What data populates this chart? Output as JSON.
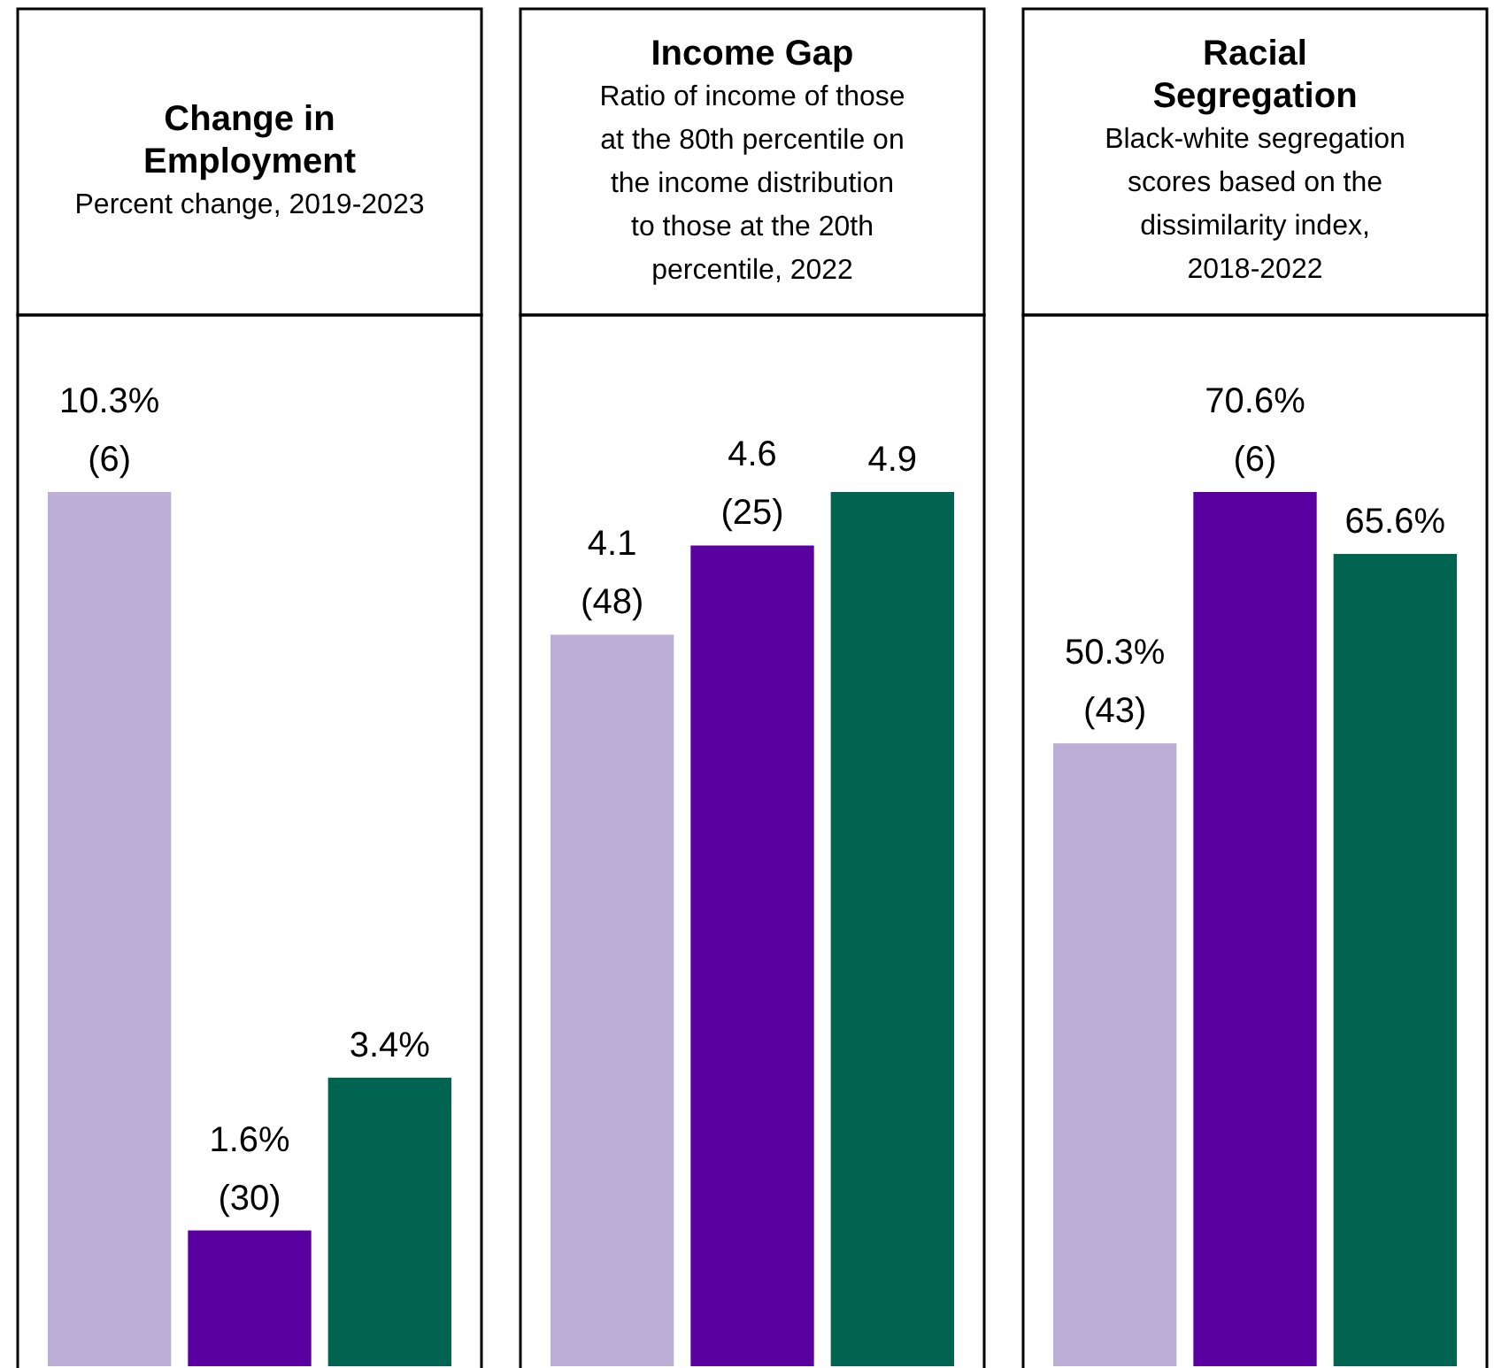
{
  "chart_data": [
    {
      "type": "bar",
      "title": "Change in Employment",
      "subtitle": "Percent change, 2019-2023",
      "categories": [
        null,
        null,
        null
      ],
      "values": [
        10.3,
        1.6,
        3.4
      ],
      "colors": [
        "#bcaed6",
        "#5a00a0",
        "#006450"
      ],
      "value_labels": [
        "10.3%\n(6)",
        "1.6%\n(30)",
        "3.4%"
      ]
    },
    {
      "type": "bar",
      "title": "Income Gap",
      "subtitle": "Ratio of income of those\nat the 80th percentile on\nthe income distribution\nto those at the 20th\npercentile, 2022",
      "categories": [
        null,
        null,
        null
      ],
      "values": [
        4.1,
        4.6,
        4.9
      ],
      "colors": [
        "#bcaed6",
        "#5a00a0",
        "#006450"
      ],
      "value_labels": [
        "4.1\n(48)",
        "4.6\n(25)",
        "4.9"
      ]
    },
    {
      "type": "bar",
      "title": "Racial Segregation",
      "subtitle": "Black-white segregation\nscores based on the\ndissimilarity index,\n2018-2022",
      "categories": [
        null,
        null,
        null
      ],
      "values": [
        50.3,
        70.6,
        65.6
      ],
      "colors": [
        "#bcaed6",
        "#5a00a0",
        "#006450"
      ],
      "value_labels": [
        "50.3%\n(43)",
        "70.6%\n(6)",
        "65.6%"
      ]
    }
  ]
}
